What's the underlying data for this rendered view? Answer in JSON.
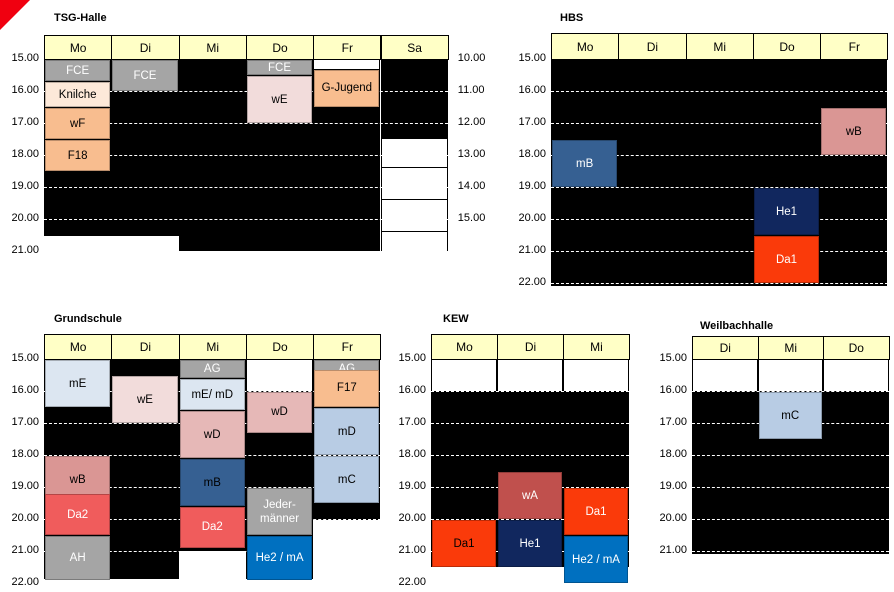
{
  "panels": {
    "tsg": {
      "title": "TSG-Halle",
      "days": [
        "Mo",
        "Di",
        "Mi",
        "Do",
        "Fr",
        "Sa"
      ],
      "times_left": [
        "15.00",
        "16.00",
        "17.00",
        "18.00",
        "19.00",
        "20.00",
        "21.00"
      ],
      "times_right": [
        "10.00",
        "11.00",
        "12.00",
        "13.00",
        "14.00",
        "15.00"
      ],
      "blocks": [
        "FCE",
        "Knilche",
        "wF",
        "F18",
        "FCE",
        "FCE",
        "wE",
        "G-Jugend"
      ]
    },
    "hbs": {
      "title": "HBS",
      "days": [
        "Mo",
        "Di",
        "Mi",
        "Do",
        "Fr"
      ],
      "times": [
        "15.00",
        "16.00",
        "17.00",
        "18.00",
        "19.00",
        "20.00",
        "21.00",
        "22.00"
      ],
      "blocks": [
        "mB",
        "He1",
        "Da1",
        "wB"
      ]
    },
    "grundschule": {
      "title": "Grundschule",
      "days": [
        "Mo",
        "Di",
        "Mi",
        "Do",
        "Fr"
      ],
      "times": [
        "15.00",
        "16.00",
        "17.00",
        "18.00",
        "19.00",
        "20.00",
        "21.00",
        "22.00"
      ],
      "blocks": [
        "mE",
        "wB",
        "Da2",
        "AH",
        "wE",
        "AG",
        "mE/ mD",
        "wD",
        "mB",
        "Da2",
        "wD",
        "Jeder-männer",
        "He2 / mA",
        "AG",
        "F17",
        "mD",
        "mC"
      ]
    },
    "kew": {
      "title": "KEW",
      "days": [
        "Mo",
        "Di",
        "Mi"
      ],
      "times": [
        "15.00",
        "16.00",
        "17.00",
        "18.00",
        "19.00",
        "20.00",
        "21.00",
        "22.00"
      ],
      "blocks": [
        "Da1",
        "wA",
        "He1",
        "Da1",
        "He2 / mA"
      ]
    },
    "weilbach": {
      "title": "Weilbachhalle",
      "days": [
        "Di",
        "Mi",
        "Do"
      ],
      "times": [
        "15.00",
        "16.00",
        "17.00",
        "18.00",
        "19.00",
        "20.00",
        "21.00"
      ],
      "blocks": [
        "mC"
      ]
    }
  },
  "colors": {
    "header": "#ffffc6",
    "grey": "#a5a5a5",
    "peach_light": "#fde9d9",
    "peach": "#f8bd8f",
    "pink_light": "#f2dcdb",
    "pink": "#e6b8b7",
    "rose": "#da9694",
    "red_brown": "#c0504d",
    "salmon": "#f05c5c",
    "orange_red": "#fa3a0a",
    "navy": "#11275e",
    "steel_blue": "#366092",
    "light_blue": "#b8cce4",
    "pale_blue": "#dce6f1",
    "blue": "#0070c0"
  }
}
